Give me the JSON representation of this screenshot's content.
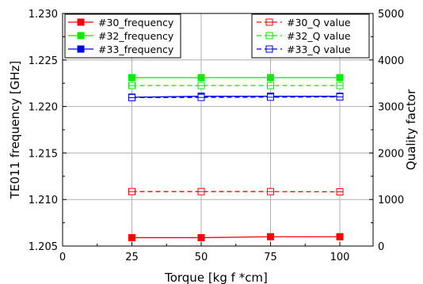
{
  "chart_data": {
    "type": "line",
    "x": [
      25,
      50,
      75,
      100
    ],
    "xlabel": "Torque [kg f *cm]",
    "ylabel": "TE011 frequency [GHz]",
    "y2label": "Quality factor",
    "xlim": [
      0,
      112
    ],
    "ylim": [
      1.205,
      1.23
    ],
    "y2lim": [
      0,
      5000
    ],
    "x_ticks": [
      0,
      25,
      50,
      75,
      100
    ],
    "y_ticks": [
      1.205,
      1.21,
      1.215,
      1.22,
      1.225,
      1.23
    ],
    "y_tick_labels": [
      "1.205",
      "1.210",
      "1.215",
      "1.220",
      "1.225",
      "1.230"
    ],
    "y2_ticks": [
      0,
      1000,
      2000,
      3000,
      4000,
      5000
    ],
    "y2_tick_labels": [
      "0",
      "1000",
      "2000",
      "3000",
      "4000",
      "5000"
    ],
    "grid": true,
    "legend_left_position": "top-left",
    "legend_right_position": "top-right",
    "series": [
      {
        "name": "#30_frequency",
        "axis": "left",
        "color": "#ff0000",
        "style": "solid",
        "marker": "filled-square",
        "values": [
          1.2059,
          1.2059,
          1.206,
          1.206
        ]
      },
      {
        "name": "#32_frequency",
        "axis": "left",
        "color": "#00ee00",
        "style": "solid",
        "marker": "filled-square",
        "values": [
          1.2231,
          1.2231,
          1.2231,
          1.2231
        ]
      },
      {
        "name": "#33_frequency",
        "axis": "left",
        "color": "#0000ee",
        "style": "solid",
        "marker": "filled-square",
        "values": [
          1.221,
          1.2211,
          1.2211,
          1.2211
        ]
      },
      {
        "name": "#30_Q value",
        "axis": "right",
        "color": "#ff0000",
        "style": "dashed",
        "marker": "open-square-cross",
        "values": [
          1170,
          1170,
          1170,
          1165
        ]
      },
      {
        "name": "#32_Q value",
        "axis": "right",
        "color": "#00ee00",
        "style": "dashed",
        "marker": "open-square-cross",
        "values": [
          3450,
          3450,
          3450,
          3450
        ]
      },
      {
        "name": "#33_Q value",
        "axis": "right",
        "color": "#0000ee",
        "style": "dashed",
        "marker": "open-square-cross",
        "values": [
          3190,
          3195,
          3200,
          3205
        ]
      }
    ]
  }
}
